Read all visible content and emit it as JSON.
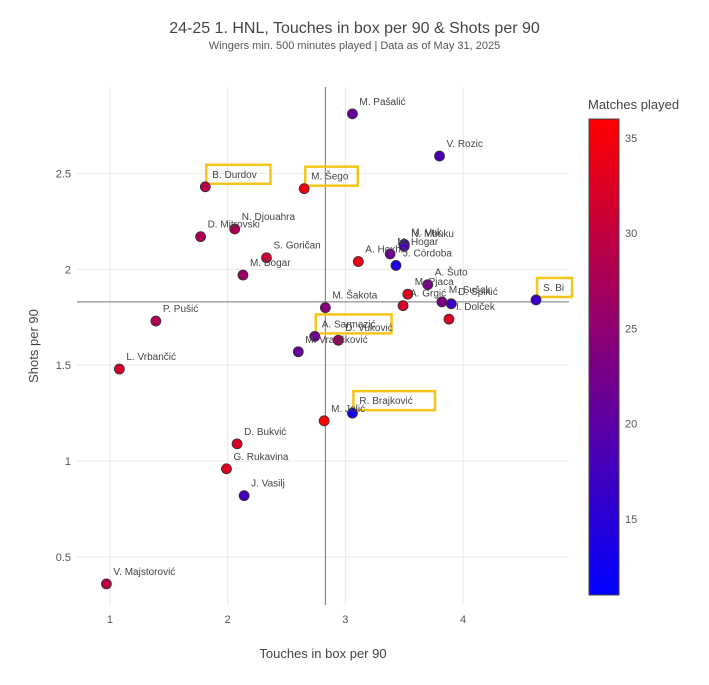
{
  "header": {
    "title": "24-25 1. HNL, Touches in box per 90 & Shots per 90",
    "subtitle": "Wingers min. 500 minutes played | Data as of May 31, 2025"
  },
  "colorbar": {
    "title": "Matches played",
    "ticks": [
      "15",
      "20",
      "25",
      "30",
      "35"
    ],
    "min": 11,
    "max": 36,
    "colors": {
      "low": "#0000ff",
      "high": "#ff0000"
    }
  },
  "chart_data": {
    "type": "scatter",
    "title": "24-25 1. HNL, Touches in box per 90 & Shots per 90",
    "xlabel": "Touches in box per 90",
    "ylabel": "Shots per 90",
    "xlim": [
      0.72,
      4.9
    ],
    "ylim": [
      0.25,
      2.95
    ],
    "xticks": [
      1,
      2,
      3,
      4
    ],
    "yticks": [
      0.5,
      1,
      1.5,
      2,
      2.5
    ],
    "grid": true,
    "reference_lines": {
      "x": 2.83,
      "y": 1.83
    },
    "highlight_color": "#f5c518",
    "points": [
      {
        "label": "M. Pašalić",
        "x": 3.06,
        "y": 2.81,
        "matches": 21,
        "highlight": false
      },
      {
        "label": "V. Rozic",
        "x": 3.8,
        "y": 2.59,
        "matches": 18,
        "highlight": false
      },
      {
        "label": "B. Durdov",
        "x": 1.81,
        "y": 2.43,
        "matches": 29,
        "highlight": true
      },
      {
        "label": "M. Šego",
        "x": 2.65,
        "y": 2.42,
        "matches": 35,
        "highlight": true
      },
      {
        "label": "N. Djouahra",
        "x": 2.06,
        "y": 2.21,
        "matches": 28,
        "highlight": false
      },
      {
        "label": "D. Mitrovski",
        "x": 1.77,
        "y": 2.17,
        "matches": 28,
        "highlight": false
      },
      {
        "label": "S. Goričan",
        "x": 2.33,
        "y": 2.06,
        "matches": 31,
        "highlight": false
      },
      {
        "label": "M. Vuk",
        "x": 3.5,
        "y": 2.13,
        "matches": 17,
        "highlight": false
      },
      {
        "label": "N. Mbuku",
        "x": 3.5,
        "y": 2.12,
        "matches": 18,
        "highlight": false
      },
      {
        "label": "A. Hoxha",
        "x": 3.11,
        "y": 2.04,
        "matches": 34,
        "highlight": false
      },
      {
        "label": "J. Córdoba",
        "x": 3.43,
        "y": 2.02,
        "matches": 14,
        "highlight": false
      },
      {
        "label": "M. Hogar",
        "x": 3.38,
        "y": 2.08,
        "matches": 22,
        "highlight": false
      },
      {
        "label": "M. Bogar",
        "x": 2.13,
        "y": 1.97,
        "matches": 26,
        "highlight": false
      },
      {
        "label": "A. Šuto",
        "x": 3.7,
        "y": 1.92,
        "matches": 23,
        "highlight": false
      },
      {
        "label": "M. Pjaca",
        "x": 3.53,
        "y": 1.87,
        "matches": 33,
        "highlight": false
      },
      {
        "label": "A. Grgić",
        "x": 3.49,
        "y": 1.81,
        "matches": 32,
        "highlight": false
      },
      {
        "label": "M. Sušak",
        "x": 3.82,
        "y": 1.83,
        "matches": 23,
        "highlight": false
      },
      {
        "label": "D. Spikić",
        "x": 3.9,
        "y": 1.82,
        "matches": 17,
        "highlight": false
      },
      {
        "label": "S. Bi",
        "x": 4.62,
        "y": 1.84,
        "matches": 17,
        "highlight": true
      },
      {
        "label": "M. Šakota",
        "x": 2.83,
        "y": 1.8,
        "matches": 24,
        "highlight": false
      },
      {
        "label": "I. Dolček",
        "x": 3.88,
        "y": 1.74,
        "matches": 32,
        "highlight": false
      },
      {
        "label": "P. Pušić",
        "x": 1.39,
        "y": 1.73,
        "matches": 28,
        "highlight": false
      },
      {
        "label": "A. Sarmazić",
        "x": 2.74,
        "y": 1.65,
        "matches": 22,
        "highlight": true
      },
      {
        "label": "D. Vuković",
        "x": 2.94,
        "y": 1.63,
        "matches": 27,
        "highlight": false
      },
      {
        "label": "M. Vrančković",
        "x": 2.6,
        "y": 1.57,
        "matches": 21,
        "highlight": false
      },
      {
        "label": "L. Vrbančić",
        "x": 1.08,
        "y": 1.48,
        "matches": 32,
        "highlight": false
      },
      {
        "label": "R. Brajković",
        "x": 3.06,
        "y": 1.25,
        "matches": 13,
        "highlight": true
      },
      {
        "label": "M. Jolić",
        "x": 2.82,
        "y": 1.21,
        "matches": 36,
        "highlight": false
      },
      {
        "label": "D. Bukvić",
        "x": 2.08,
        "y": 1.09,
        "matches": 32,
        "highlight": false
      },
      {
        "label": "G. Rukavina",
        "x": 1.99,
        "y": 0.96,
        "matches": 33,
        "highlight": false
      },
      {
        "label": "J. Vasilj",
        "x": 2.14,
        "y": 0.82,
        "matches": 18,
        "highlight": false
      },
      {
        "label": "V. Majstorović",
        "x": 0.97,
        "y": 0.36,
        "matches": 29,
        "highlight": false
      }
    ]
  }
}
